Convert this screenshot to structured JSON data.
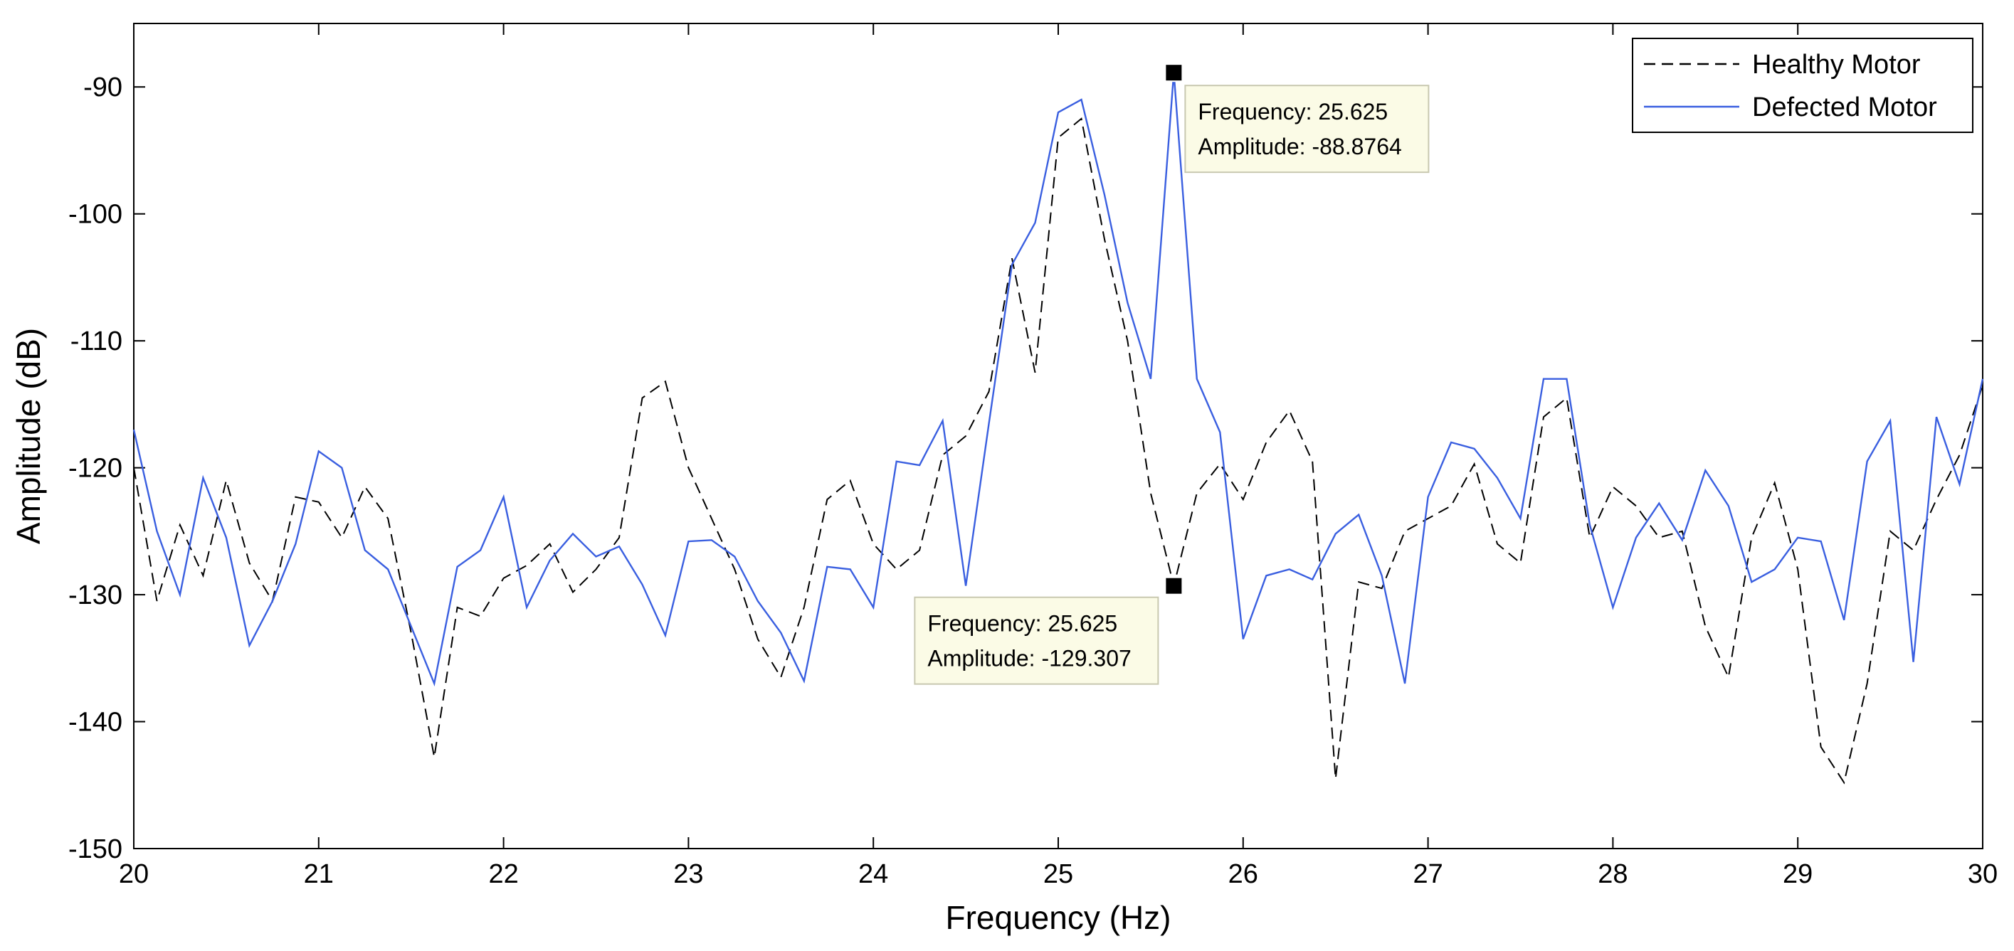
{
  "chart_data": {
    "type": "line",
    "title": "",
    "xlabel": "Frequency (Hz)",
    "ylabel": "Amplitude (dB)",
    "xlim": [
      20,
      30
    ],
    "ylim": [
      -150,
      -85
    ],
    "xticks": [
      20,
      21,
      22,
      23,
      24,
      25,
      26,
      27,
      28,
      29,
      30
    ],
    "yticks": [
      -90,
      -100,
      -110,
      -120,
      -130,
      -140,
      -150
    ],
    "xtick_labels": [
      "20",
      "21",
      "22",
      "23",
      "24",
      "25",
      "26",
      "27",
      "28",
      "29",
      "30"
    ],
    "ytick_labels": [
      "-90",
      "-100",
      "-110",
      "-120",
      "-130",
      "-140",
      "-150"
    ],
    "grid": false,
    "legend_position": "top-right",
    "series": [
      {
        "name": "Healthy Motor",
        "color": "#000000",
        "style": "dashed",
        "x": [
          20,
          20.125,
          20.25,
          20.375,
          20.5,
          20.625,
          20.75,
          20.875,
          21,
          21.125,
          21.25,
          21.375,
          21.5,
          21.625,
          21.75,
          21.875,
          22,
          22.125,
          22.25,
          22.375,
          22.5,
          22.625,
          22.75,
          22.875,
          23,
          23.125,
          23.25,
          23.375,
          23.5,
          23.625,
          23.75,
          23.875,
          24,
          24.125,
          24.25,
          24.375,
          24.5,
          24.625,
          24.75,
          24.875,
          25,
          25.125,
          25.25,
          25.375,
          25.5,
          25.625,
          25.75,
          25.875,
          26,
          26.125,
          26.25,
          26.375,
          26.5,
          26.625,
          26.75,
          26.875,
          27,
          27.125,
          27.25,
          27.375,
          27.5,
          27.625,
          27.75,
          27.875,
          28,
          28.125,
          28.25,
          28.375,
          28.5,
          28.625,
          28.75,
          28.875,
          29,
          29.125,
          29.25,
          29.375,
          29.5,
          29.625,
          29.75,
          29.875,
          30
        ],
        "y": [
          -120,
          -130.5,
          -124.5,
          -128.5,
          -121,
          -127.5,
          -130.5,
          -122.3,
          -122.7,
          -125.5,
          -121.5,
          -124,
          -133,
          -142.8,
          -131,
          -131.7,
          -128.7,
          -127.7,
          -126,
          -129.8,
          -128,
          -125.5,
          -114.5,
          -113.2,
          -120,
          -124,
          -128,
          -133.5,
          -136.5,
          -131,
          -122.5,
          -121,
          -126,
          -128,
          -126.5,
          -119,
          -117.5,
          -114,
          -103.5,
          -112.5,
          -94,
          -92.5,
          -102,
          -110,
          -122,
          -129.3,
          -122,
          -119.7,
          -122.5,
          -118,
          -115.5,
          -119.5,
          -144.5,
          -129,
          -129.5,
          -125,
          -124,
          -123,
          -119.7,
          -126,
          -127.5,
          -116,
          -114.5,
          -125.5,
          -121.5,
          -123,
          -125.5,
          -125,
          -132.5,
          -136.5,
          -125.5,
          -121.2,
          -128,
          -142,
          -144.8,
          -137,
          -125,
          -126.5,
          -122.5,
          -119,
          -113.5
        ]
      },
      {
        "name": "Defected Motor",
        "color": "#3a5fe0",
        "style": "solid",
        "x": [
          20,
          20.125,
          20.25,
          20.375,
          20.5,
          20.625,
          20.75,
          20.875,
          21,
          21.125,
          21.25,
          21.375,
          21.5,
          21.625,
          21.75,
          21.875,
          22,
          22.125,
          22.25,
          22.375,
          22.5,
          22.625,
          22.75,
          22.875,
          23,
          23.125,
          23.25,
          23.375,
          23.5,
          23.625,
          23.75,
          23.875,
          24,
          24.125,
          24.25,
          24.375,
          24.5,
          24.625,
          24.75,
          24.875,
          25,
          25.125,
          25.25,
          25.375,
          25.5,
          25.625,
          25.75,
          25.875,
          26,
          26.125,
          26.25,
          26.375,
          26.5,
          26.625,
          26.75,
          26.875,
          27,
          27.125,
          27.25,
          27.375,
          27.5,
          27.625,
          27.75,
          27.875,
          28,
          28.125,
          28.25,
          28.375,
          28.5,
          28.625,
          28.75,
          28.875,
          29,
          29.125,
          29.25,
          29.375,
          29.5,
          29.625,
          29.75,
          29.875,
          30
        ],
        "y": [
          -117,
          -125,
          -130,
          -120.8,
          -125.5,
          -134,
          -130.5,
          -126,
          -118.7,
          -120,
          -126.5,
          -128,
          -132.5,
          -137,
          -127.8,
          -126.5,
          -122.3,
          -131,
          -127.3,
          -125.2,
          -127,
          -126.2,
          -129.2,
          -133.2,
          -125.8,
          -125.7,
          -127,
          -130.5,
          -133,
          -136.8,
          -127.8,
          -128,
          -131,
          -119.5,
          -119.8,
          -116.3,
          -129.3,
          -116.5,
          -104,
          -100.7,
          -92,
          -91,
          -98.5,
          -107,
          -113,
          -88.8764,
          -113,
          -117.2,
          -133.5,
          -128.5,
          -128,
          -128.8,
          -125.2,
          -123.7,
          -128.5,
          -137,
          -122.3,
          -118,
          -118.5,
          -120.8,
          -124,
          -113,
          -113,
          -124.5,
          -131,
          -125.5,
          -122.8,
          -125.7,
          -120.2,
          -123,
          -129,
          -128,
          -125.5,
          -125.8,
          -132,
          -119.5,
          -116.3,
          -135.3,
          -116,
          -121.3,
          -113
        ]
      }
    ],
    "annotations": [
      {
        "series": "Defected Motor",
        "x": 25.625,
        "y": -88.8764,
        "line1": "Frequency: 25.625",
        "line2": "Amplitude: -88.8764",
        "placement": "right-below"
      },
      {
        "series": "Healthy Motor",
        "x": 25.625,
        "y": -129.307,
        "line1": "Frequency: 25.625",
        "line2": "Amplitude: -129.307",
        "placement": "left-below"
      }
    ]
  }
}
